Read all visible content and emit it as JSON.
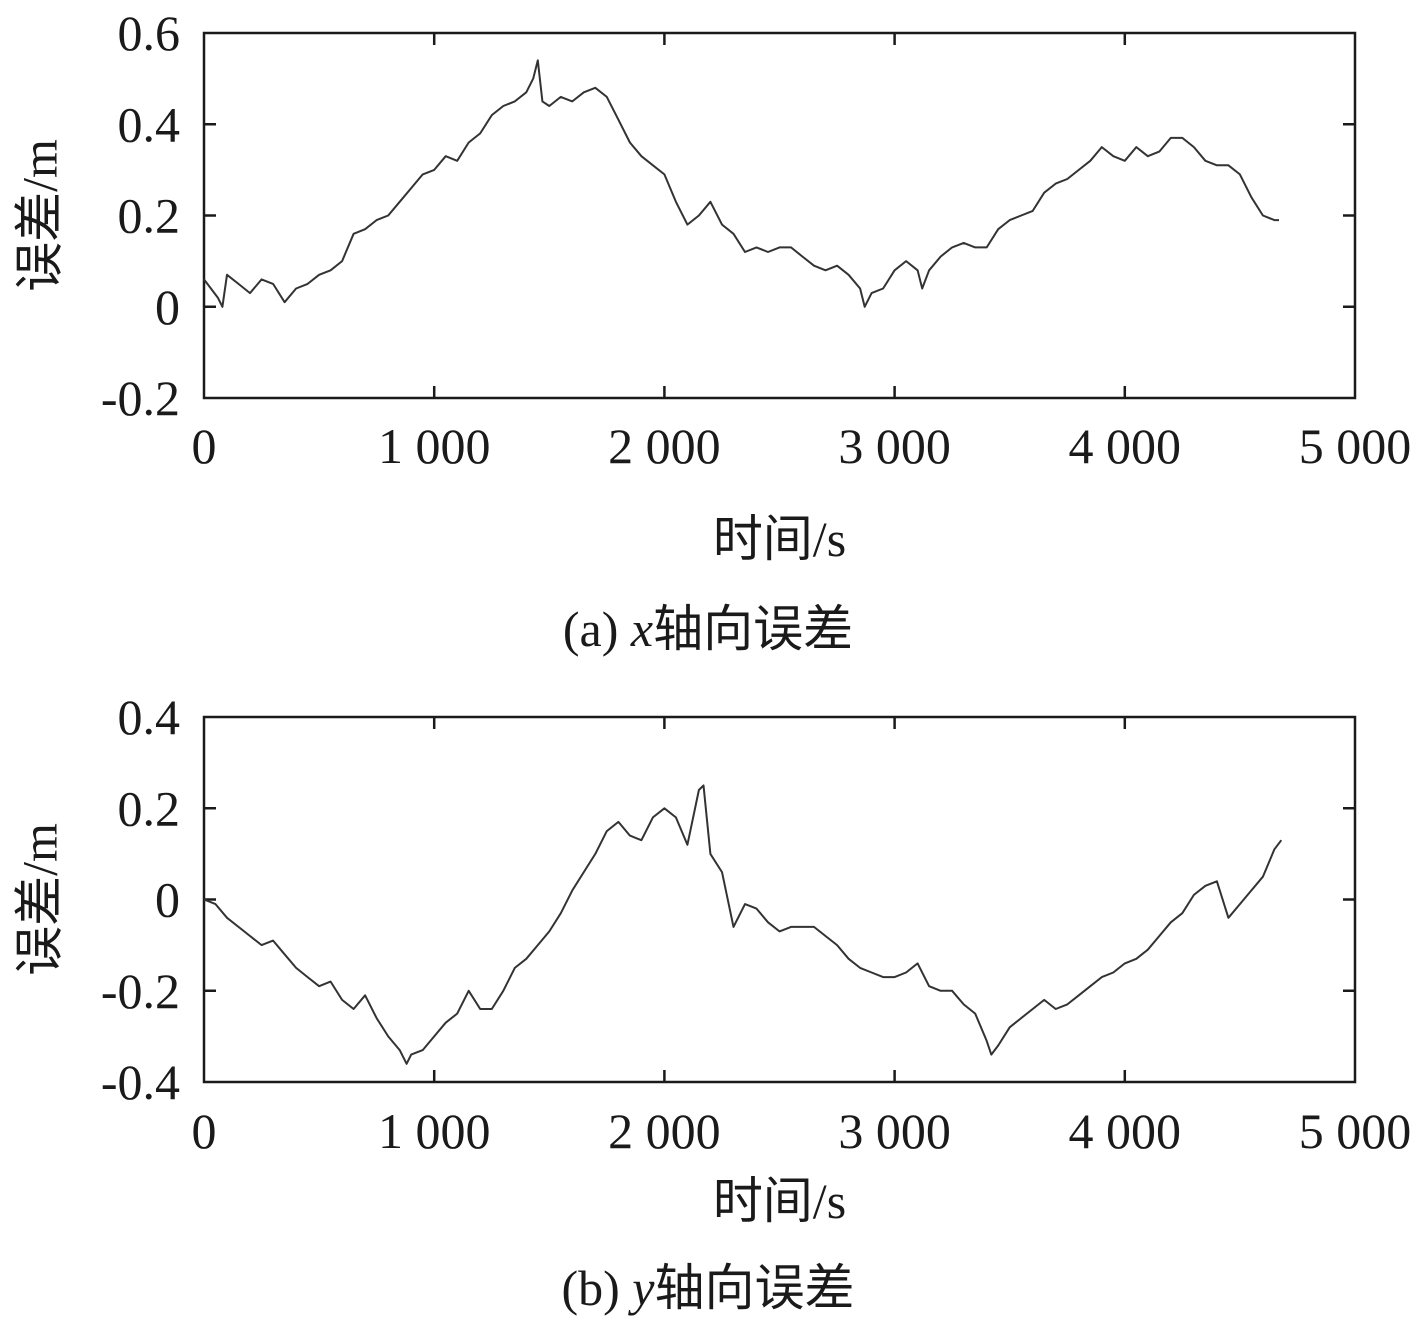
{
  "chart_data": [
    {
      "type": "line",
      "caption_prefix": "(a) ",
      "caption_var": "x",
      "caption_suffix": "轴向误差",
      "xlabel": "时间/s",
      "ylabel": "误差/m",
      "xlim": [
        0,
        5000
      ],
      "ylim": [
        -0.2,
        0.6
      ],
      "xticks": [
        0,
        1000,
        2000,
        3000,
        4000,
        5000
      ],
      "xtick_labels": [
        "0",
        "1 000",
        "2 000",
        "3 000",
        "4 000",
        "5 000"
      ],
      "yticks": [
        -0.2,
        0,
        0.2,
        0.4,
        0.6
      ],
      "ytick_labels": [
        "-0.2",
        "0",
        "0.2",
        "0.4",
        "0.6"
      ],
      "grid": false,
      "line_color": "#333333",
      "series": [
        {
          "x": [
            0,
            30,
            60,
            80,
            100,
            150,
            200,
            250,
            300,
            350,
            400,
            450,
            500,
            550,
            600,
            650,
            700,
            750,
            800,
            850,
            900,
            950,
            1000,
            1050,
            1100,
            1150,
            1200,
            1250,
            1300,
            1350,
            1400,
            1430,
            1450,
            1470,
            1500,
            1550,
            1600,
            1650,
            1700,
            1750,
            1800,
            1850,
            1900,
            1950,
            2000,
            2050,
            2100,
            2150,
            2200,
            2250,
            2300,
            2350,
            2400,
            2450,
            2500,
            2550,
            2600,
            2650,
            2700,
            2750,
            2800,
            2850,
            2870,
            2900,
            2950,
            3000,
            3050,
            3100,
            3120,
            3150,
            3200,
            3250,
            3300,
            3350,
            3400,
            3450,
            3500,
            3550,
            3600,
            3650,
            3700,
            3750,
            3800,
            3850,
            3900,
            3950,
            4000,
            4050,
            4100,
            4150,
            4200,
            4250,
            4300,
            4350,
            4400,
            4450,
            4500,
            4550,
            4600,
            4650,
            4670
          ],
          "y": [
            0.06,
            0.04,
            0.02,
            0.0,
            0.07,
            0.05,
            0.03,
            0.06,
            0.05,
            0.01,
            0.04,
            0.05,
            0.07,
            0.08,
            0.1,
            0.16,
            0.17,
            0.19,
            0.2,
            0.23,
            0.26,
            0.29,
            0.3,
            0.33,
            0.32,
            0.36,
            0.38,
            0.42,
            0.44,
            0.45,
            0.47,
            0.5,
            0.54,
            0.45,
            0.44,
            0.46,
            0.45,
            0.47,
            0.48,
            0.46,
            0.41,
            0.36,
            0.33,
            0.31,
            0.29,
            0.23,
            0.18,
            0.2,
            0.23,
            0.18,
            0.16,
            0.12,
            0.13,
            0.12,
            0.13,
            0.13,
            0.11,
            0.09,
            0.08,
            0.09,
            0.07,
            0.04,
            0.0,
            0.03,
            0.04,
            0.08,
            0.1,
            0.08,
            0.04,
            0.08,
            0.11,
            0.13,
            0.14,
            0.13,
            0.13,
            0.17,
            0.19,
            0.2,
            0.21,
            0.25,
            0.27,
            0.28,
            0.3,
            0.32,
            0.35,
            0.33,
            0.32,
            0.35,
            0.33,
            0.34,
            0.37,
            0.37,
            0.35,
            0.32,
            0.31,
            0.31,
            0.29,
            0.24,
            0.2,
            0.19,
            0.19
          ]
        }
      ]
    },
    {
      "type": "line",
      "caption_prefix": "(b) ",
      "caption_var": "y",
      "caption_suffix": "轴向误差",
      "xlabel": "时间/s",
      "ylabel": "误差/m",
      "xlim": [
        0,
        5000
      ],
      "ylim": [
        -0.4,
        0.4
      ],
      "xticks": [
        0,
        1000,
        2000,
        3000,
        4000,
        5000
      ],
      "xtick_labels": [
        "0",
        "1 000",
        "2 000",
        "3 000",
        "4 000",
        "5 000"
      ],
      "yticks": [
        -0.4,
        -0.2,
        0,
        0.2,
        0.4
      ],
      "ytick_labels": [
        "-0.4",
        "-0.2",
        "0",
        "0.2",
        "0.4"
      ],
      "grid": false,
      "line_color": "#333333",
      "series": [
        {
          "x": [
            0,
            50,
            100,
            150,
            200,
            250,
            300,
            350,
            400,
            450,
            500,
            550,
            600,
            650,
            700,
            750,
            800,
            850,
            880,
            900,
            950,
            1000,
            1050,
            1100,
            1150,
            1200,
            1250,
            1300,
            1350,
            1400,
            1450,
            1500,
            1550,
            1600,
            1650,
            1700,
            1750,
            1800,
            1850,
            1900,
            1950,
            2000,
            2050,
            2100,
            2150,
            2170,
            2200,
            2250,
            2300,
            2350,
            2400,
            2450,
            2500,
            2550,
            2600,
            2650,
            2700,
            2750,
            2800,
            2850,
            2900,
            2950,
            3000,
            3050,
            3100,
            3150,
            3200,
            3250,
            3300,
            3350,
            3400,
            3420,
            3450,
            3500,
            3550,
            3600,
            3650,
            3700,
            3750,
            3800,
            3850,
            3900,
            3950,
            4000,
            4050,
            4100,
            4150,
            4200,
            4250,
            4300,
            4350,
            4400,
            4450,
            4500,
            4550,
            4600,
            4650,
            4680
          ],
          "y": [
            0.0,
            -0.01,
            -0.04,
            -0.06,
            -0.08,
            -0.1,
            -0.09,
            -0.12,
            -0.15,
            -0.17,
            -0.19,
            -0.18,
            -0.22,
            -0.24,
            -0.21,
            -0.26,
            -0.3,
            -0.33,
            -0.36,
            -0.34,
            -0.33,
            -0.3,
            -0.27,
            -0.25,
            -0.2,
            -0.24,
            -0.24,
            -0.2,
            -0.15,
            -0.13,
            -0.1,
            -0.07,
            -0.03,
            0.02,
            0.06,
            0.1,
            0.15,
            0.17,
            0.14,
            0.13,
            0.18,
            0.2,
            0.18,
            0.12,
            0.24,
            0.25,
            0.1,
            0.06,
            -0.06,
            -0.01,
            -0.02,
            -0.05,
            -0.07,
            -0.06,
            -0.06,
            -0.06,
            -0.08,
            -0.1,
            -0.13,
            -0.15,
            -0.16,
            -0.17,
            -0.17,
            -0.16,
            -0.14,
            -0.19,
            -0.2,
            -0.2,
            -0.23,
            -0.25,
            -0.31,
            -0.34,
            -0.32,
            -0.28,
            -0.26,
            -0.24,
            -0.22,
            -0.24,
            -0.23,
            -0.21,
            -0.19,
            -0.17,
            -0.16,
            -0.14,
            -0.13,
            -0.11,
            -0.08,
            -0.05,
            -0.03,
            0.01,
            0.03,
            0.04,
            -0.04,
            -0.01,
            0.02,
            0.05,
            0.11,
            0.13
          ]
        }
      ]
    }
  ]
}
